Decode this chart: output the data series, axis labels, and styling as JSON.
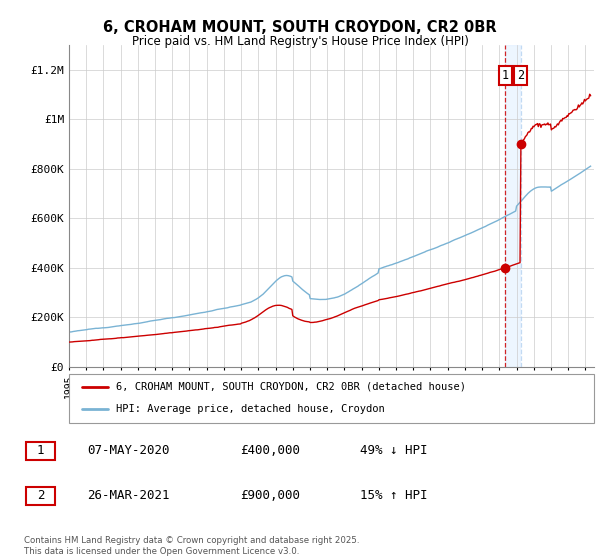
{
  "title": "6, CROHAM MOUNT, SOUTH CROYDON, CR2 0BR",
  "subtitle": "Price paid vs. HM Land Registry's House Price Index (HPI)",
  "ylim": [
    0,
    1300000
  ],
  "yticks": [
    0,
    200000,
    400000,
    600000,
    800000,
    1000000,
    1200000
  ],
  "ytick_labels": [
    "£0",
    "£200K",
    "£400K",
    "£600K",
    "£800K",
    "£1M",
    "£1.2M"
  ],
  "xlim_start": 1995.0,
  "xlim_end": 2025.5,
  "hpi_color": "#7ab3d4",
  "property_color": "#cc0000",
  "dashed_color_red": "#cc0000",
  "dashed_color_blue": "#aaccee",
  "transaction1_date": 2020.35,
  "transaction1_price": 400000,
  "transaction1_label": "1",
  "transaction2_date": 2021.23,
  "transaction2_price": 900000,
  "transaction2_label": "2",
  "legend1_text": "6, CROHAM MOUNT, SOUTH CROYDON, CR2 0BR (detached house)",
  "legend2_text": "HPI: Average price, detached house, Croydon",
  "table_row1": [
    "1",
    "07-MAY-2020",
    "£400,000",
    "49% ↓ HPI"
  ],
  "table_row2": [
    "2",
    "26-MAR-2021",
    "£900,000",
    "15% ↑ HPI"
  ],
  "footnote": "Contains HM Land Registry data © Crown copyright and database right 2025.\nThis data is licensed under the Open Government Licence v3.0.",
  "background_color": "#ffffff",
  "grid_color": "#cccccc"
}
